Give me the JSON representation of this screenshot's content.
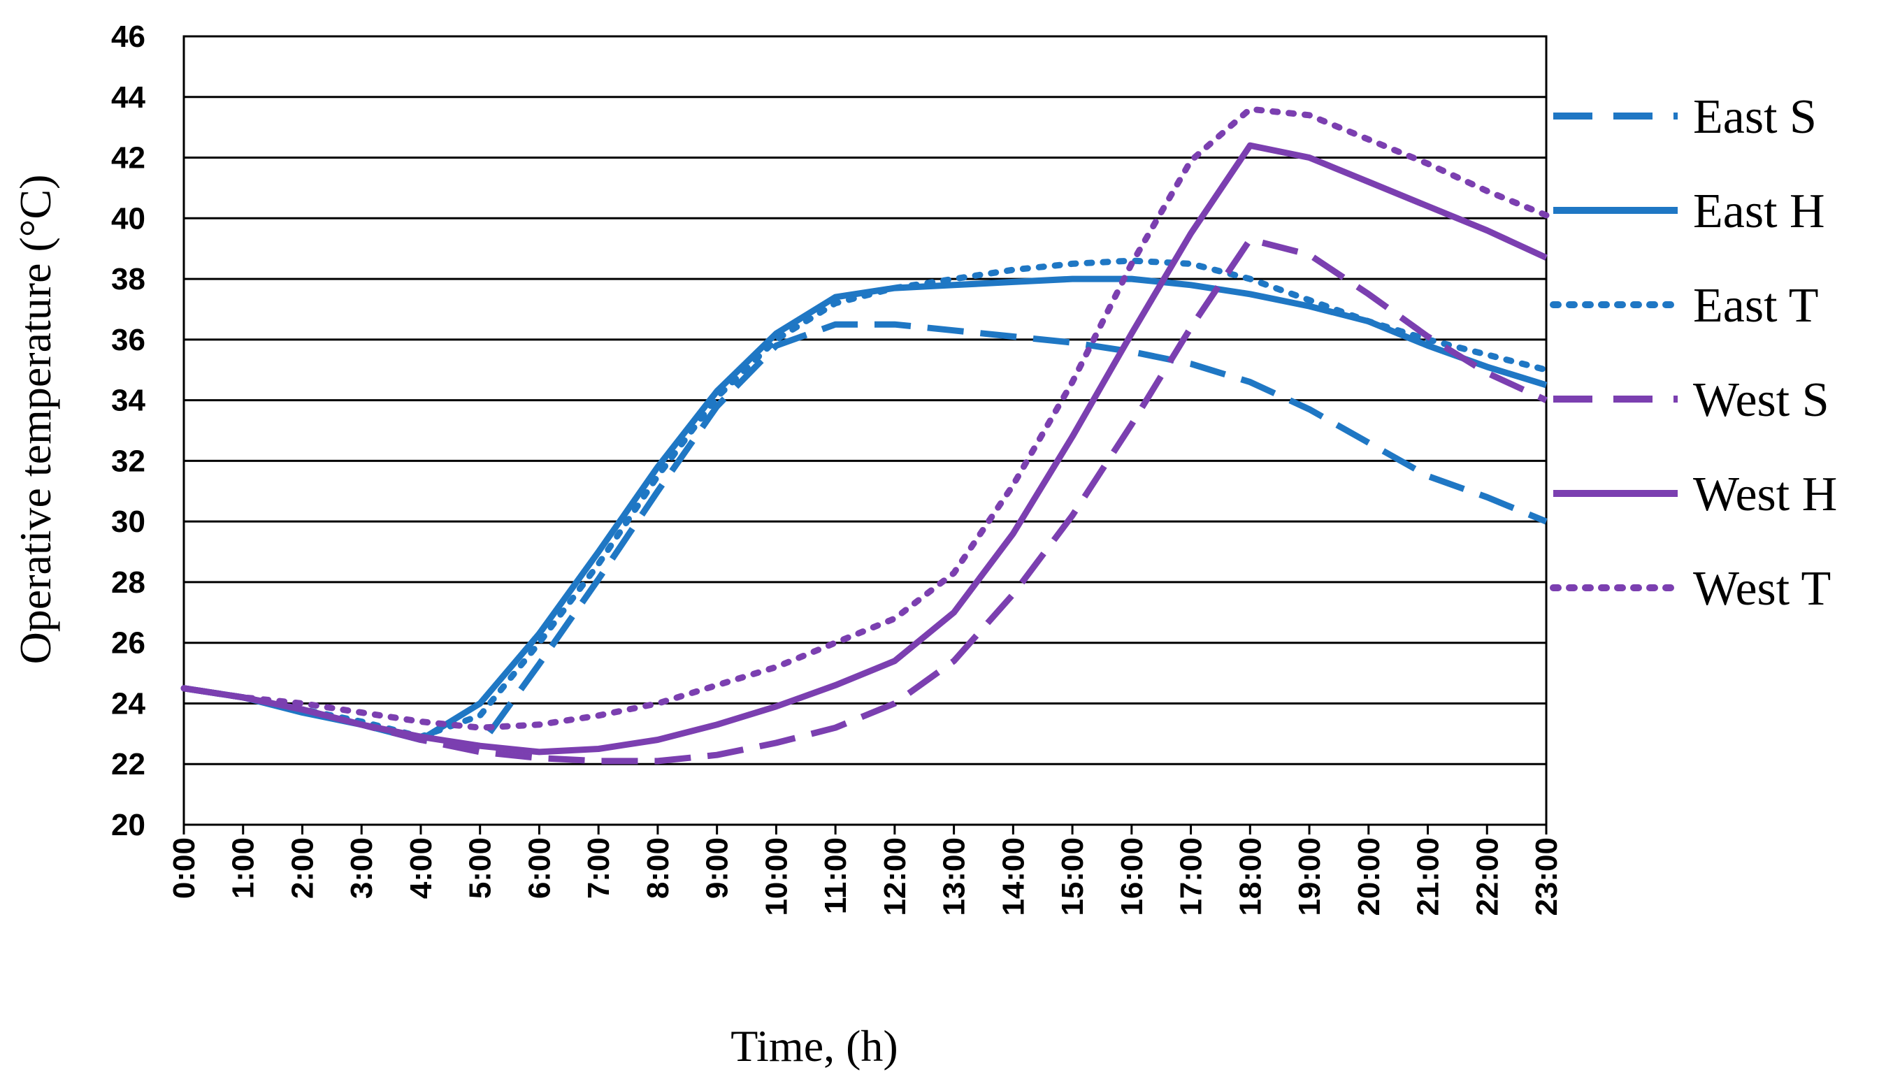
{
  "chart_data": {
    "type": "line",
    "title": "",
    "xlabel": "Time, (h)",
    "ylabel": "Operative temperature (°C)",
    "ylim": [
      20,
      46
    ],
    "yticks": [
      20,
      22,
      24,
      26,
      28,
      30,
      32,
      34,
      36,
      38,
      40,
      42,
      44,
      46
    ],
    "grid": "horizontal",
    "legend_position": "right",
    "categories": [
      "0:00",
      "1:00",
      "2:00",
      "3:00",
      "4:00",
      "5:00",
      "6:00",
      "7:00",
      "8:00",
      "9:00",
      "10:00",
      "11:00",
      "12:00",
      "13:00",
      "14:00",
      "15:00",
      "16:00",
      "17:00",
      "18:00",
      "19:00",
      "20:00",
      "21:00",
      "22:00",
      "23:00"
    ],
    "series": [
      {
        "name": "East S",
        "color": "#1f77c4",
        "style": "dashed",
        "values": [
          24.5,
          24.2,
          23.8,
          23.3,
          22.8,
          22.6,
          25.3,
          28.1,
          31.0,
          33.8,
          35.8,
          36.5,
          36.5,
          36.3,
          36.1,
          35.9,
          35.6,
          35.2,
          34.6,
          33.7,
          32.6,
          31.5,
          30.8,
          30.0
        ]
      },
      {
        "name": "East H",
        "color": "#1f77c4",
        "style": "solid",
        "values": [
          24.5,
          24.2,
          23.7,
          23.3,
          22.8,
          24.0,
          26.3,
          29.0,
          31.8,
          34.3,
          36.2,
          37.4,
          37.7,
          37.8,
          37.9,
          38.0,
          38.0,
          37.8,
          37.5,
          37.1,
          36.6,
          35.8,
          35.1,
          34.5
        ]
      },
      {
        "name": "East T",
        "color": "#1f77c4",
        "style": "dotted",
        "values": [
          24.5,
          24.2,
          23.8,
          23.4,
          22.9,
          23.6,
          26.0,
          28.6,
          31.5,
          34.1,
          36.0,
          37.2,
          37.7,
          38.0,
          38.3,
          38.5,
          38.6,
          38.5,
          38.0,
          37.3,
          36.6,
          36.0,
          35.5,
          35.0
        ]
      },
      {
        "name": "West S",
        "color": "#7b3fb0",
        "style": "dashed",
        "values": [
          24.5,
          24.2,
          23.8,
          23.3,
          22.8,
          22.4,
          22.2,
          22.1,
          22.1,
          22.3,
          22.7,
          23.2,
          24.0,
          25.4,
          27.6,
          30.2,
          33.2,
          36.4,
          39.3,
          38.8,
          37.5,
          36.1,
          34.9,
          34.0
        ]
      },
      {
        "name": "West H",
        "color": "#7b3fb0",
        "style": "solid",
        "values": [
          24.5,
          24.2,
          23.8,
          23.3,
          22.9,
          22.6,
          22.4,
          22.5,
          22.8,
          23.3,
          23.9,
          24.6,
          25.4,
          27.0,
          29.6,
          32.8,
          36.2,
          39.5,
          42.4,
          42.0,
          41.2,
          40.4,
          39.6,
          38.7
        ]
      },
      {
        "name": "West T",
        "color": "#7b3fb0",
        "style": "dotted",
        "values": [
          24.5,
          24.2,
          24.0,
          23.7,
          23.4,
          23.2,
          23.3,
          23.6,
          24.0,
          24.6,
          25.2,
          26.0,
          26.8,
          28.3,
          31.2,
          34.6,
          38.5,
          41.9,
          43.6,
          43.4,
          42.6,
          41.8,
          40.9,
          40.1
        ]
      }
    ]
  }
}
